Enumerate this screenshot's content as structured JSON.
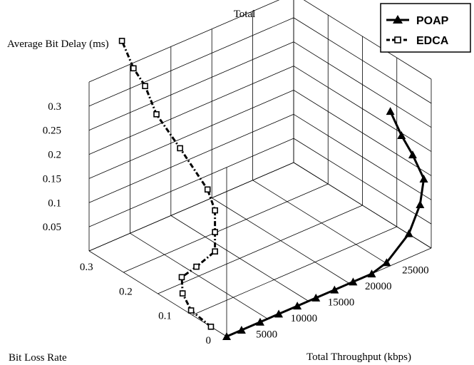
{
  "chart_data": {
    "type": "line3d",
    "title": "Total",
    "axes": {
      "x": {
        "label": "Total Throughput (kbps)",
        "ticks": [
          5000,
          10000,
          15000,
          20000,
          25000
        ],
        "range": [
          0,
          27500
        ]
      },
      "y": {
        "label": "Bit Loss Rate",
        "ticks": [
          0,
          0.1,
          0.2,
          0.3
        ],
        "range": [
          0,
          0.35
        ]
      },
      "z": {
        "label": "Average Bit Delay (ms)",
        "ticks": [
          0.05,
          0.1,
          0.15,
          0.2,
          0.25,
          0.3
        ],
        "range": [
          0,
          0.35
        ]
      }
    },
    "legend": {
      "position": "top-right",
      "entries": [
        "POAP",
        "EDCA"
      ]
    },
    "series": [
      {
        "name": "POAP",
        "marker": "triangle",
        "line": "solid",
        "points": [
          {
            "x": 0,
            "y": 0,
            "z": 0
          },
          {
            "x": 2000,
            "y": 0,
            "z": 0
          },
          {
            "x": 4500,
            "y": 0,
            "z": 0
          },
          {
            "x": 7000,
            "y": 0,
            "z": 0
          },
          {
            "x": 9500,
            "y": 0,
            "z": 0
          },
          {
            "x": 12000,
            "y": 0,
            "z": 0
          },
          {
            "x": 14500,
            "y": 0,
            "z": 0
          },
          {
            "x": 17000,
            "y": 0,
            "z": 0
          },
          {
            "x": 19500,
            "y": 0,
            "z": 0
          },
          {
            "x": 21500,
            "y": 0,
            "z": 0.01
          },
          {
            "x": 24500,
            "y": 0,
            "z": 0.05
          },
          {
            "x": 26000,
            "y": 0,
            "z": 0.1
          },
          {
            "x": 26500,
            "y": 0,
            "z": 0.15
          },
          {
            "x": 25000,
            "y": 0,
            "z": 0.21
          },
          {
            "x": 23500,
            "y": 0,
            "z": 0.26
          },
          {
            "x": 22000,
            "y": 0,
            "z": 0.32
          }
        ]
      },
      {
        "name": "EDCA",
        "marker": "square",
        "line": "dash-dot",
        "points": [
          {
            "x": 0,
            "y": 0.04,
            "z": 0
          },
          {
            "x": 500,
            "y": 0.1,
            "z": 0
          },
          {
            "x": 2000,
            "y": 0.15,
            "z": 0
          },
          {
            "x": 4000,
            "y": 0.19,
            "z": 0
          },
          {
            "x": 6500,
            "y": 0.2,
            "z": 0
          },
          {
            "x": 9000,
            "y": 0.2,
            "z": 0.015
          },
          {
            "x": 9000,
            "y": 0.2,
            "z": 0.055
          },
          {
            "x": 9000,
            "y": 0.2,
            "z": 0.1
          },
          {
            "x": 8000,
            "y": 0.2,
            "z": 0.15
          },
          {
            "x": 8000,
            "y": 0.27,
            "z": 0.2
          },
          {
            "x": 8000,
            "y": 0.33,
            "z": 0.24
          },
          {
            "x": 7000,
            "y": 0.34,
            "z": 0.3
          },
          {
            "x": 6500,
            "y": 0.36,
            "z": 0.33
          },
          {
            "x": 6000,
            "y": 0.38,
            "z": 0.38
          }
        ]
      }
    ]
  }
}
